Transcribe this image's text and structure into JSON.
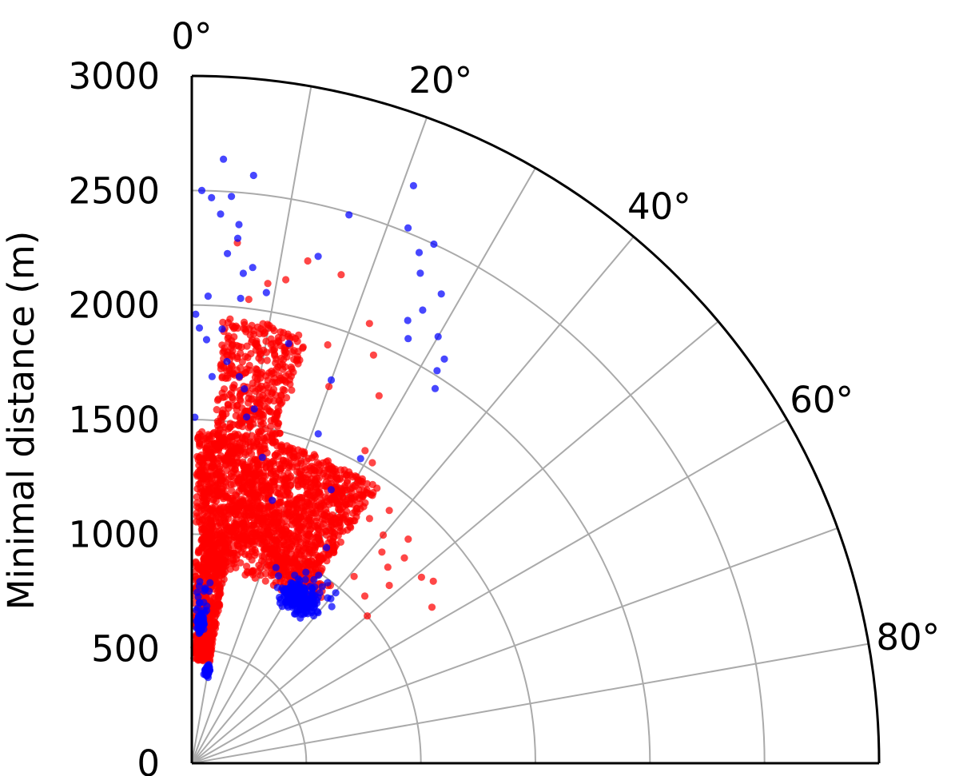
{
  "chart_data": {
    "type": "scatter",
    "projection": "polar-quadrant",
    "title": "",
    "ylabel": "Minimal distance (m)",
    "angle_ticks": [
      "0°",
      "20°",
      "40°",
      "60°",
      "80°"
    ],
    "angle_tick_values": [
      0,
      20,
      40,
      60,
      80
    ],
    "radial_ticks": [
      "0",
      "500",
      "1000",
      "1500",
      "2000",
      "2500",
      "3000"
    ],
    "radial_tick_values": [
      0,
      500,
      1000,
      1500,
      2000,
      2500,
      3000
    ],
    "rlim": [
      0,
      3000
    ],
    "theta_range_deg": [
      0,
      90
    ],
    "grid": true,
    "colors": {
      "red": "#ff0000",
      "blue": "#0000ff",
      "grid": "#aaaaaa"
    },
    "series": [
      {
        "color": "#ff0000",
        "clusters": [
          {
            "theta": [
              1,
              10
            ],
            "r": [
              450,
              1000
            ],
            "count": 520,
            "dist": "uniform"
          },
          {
            "theta": [
              1,
              20
            ],
            "r": [
              1000,
              1450
            ],
            "count": 900,
            "dist": "uniform"
          },
          {
            "theta": [
              4,
              15
            ],
            "r": [
              1450,
              1950
            ],
            "count": 380,
            "dist": "uniform"
          },
          {
            "theta": [
              20,
              34
            ],
            "r": [
              900,
              1450
            ],
            "count": 650,
            "dist": "uniform"
          },
          {
            "theta": [
              4,
              38
            ],
            "r": [
              850,
              1000
            ],
            "count": 200,
            "dist": "uniform"
          }
        ],
        "points": [
          [
            17,
            2230
          ],
          [
            13,
            2250
          ],
          [
            5,
            2280
          ],
          [
            9,
            2120
          ],
          [
            22,
            2070
          ],
          [
            24,
            1950
          ],
          [
            29,
            1560
          ],
          [
            34,
            1410
          ],
          [
            38,
            1400
          ],
          [
            40,
            1300
          ],
          [
            42,
            1240
          ],
          [
            45,
            1210
          ],
          [
            46,
            1290
          ],
          [
            44,
            1360
          ],
          [
            48,
            1160
          ],
          [
            51,
            1290
          ],
          [
            53,
            1320
          ],
          [
            57,
            1250
          ],
          [
            46,
            1050
          ],
          [
            50,
            1000
          ],
          [
            41,
            1080
          ],
          [
            36,
            1320
          ],
          [
            31,
            1530
          ],
          [
            27,
            1800
          ],
          [
            20,
            1750
          ],
          [
            18,
            1920
          ],
          [
            11,
            2150
          ],
          [
            7,
            2040
          ]
        ]
      },
      {
        "color": "#0000ff",
        "clusters": [
          {
            "theta": [
              1.5,
              6
            ],
            "r": [
              560,
              660
            ],
            "count": 100,
            "dist": "gauss",
            "center": [
              3.5,
              610
            ],
            "sd": [
              0.7,
              18
            ]
          },
          {
            "theta": [
              1,
              6
            ],
            "r": [
              660,
              800
            ],
            "count": 18,
            "dist": "uniform"
          },
          {
            "theta": [
              7.5,
              11
            ],
            "r": [
              380,
              440
            ],
            "count": 80,
            "dist": "gauss",
            "center": [
              9.5,
              410
            ],
            "sd": [
              0.6,
              10
            ]
          },
          {
            "theta": [
              26,
              40
            ],
            "r": [
              790,
              960
            ],
            "count": 220,
            "dist": "gauss",
            "center": [
              33,
              860
            ],
            "sd": [
              2.6,
              28
            ]
          },
          {
            "theta": [
              20,
              43
            ],
            "r": [
              900,
              1000
            ],
            "count": 16,
            "dist": "uniform"
          }
        ],
        "points": [
          [
            3,
            2640
          ],
          [
            6,
            2580
          ],
          [
            1,
            2500
          ],
          [
            2,
            2470
          ],
          [
            4,
            2480
          ],
          [
            3,
            2400
          ],
          [
            5,
            2360
          ],
          [
            7,
            2180
          ],
          [
            6,
            2150
          ],
          [
            4,
            2230
          ],
          [
            5,
            2300
          ],
          [
            2,
            2040
          ],
          [
            6,
            2040
          ],
          [
            9,
            2080
          ],
          [
            0.5,
            1960
          ],
          [
            1,
            1900
          ],
          [
            2,
            1850
          ],
          [
            4,
            1900
          ],
          [
            5,
            1760
          ],
          [
            3,
            1690
          ],
          [
            7,
            1700
          ],
          [
            8,
            1650
          ],
          [
            10,
            1570
          ],
          [
            9,
            1530
          ],
          [
            14,
            2280
          ],
          [
            21,
            2700
          ],
          [
            16,
            2490
          ],
          [
            22,
            2520
          ],
          [
            24,
            2440
          ],
          [
            25,
            2500
          ],
          [
            25,
            2360
          ],
          [
            28,
            2320
          ],
          [
            27,
            2220
          ],
          [
            26,
            2150
          ],
          [
            27,
            2080
          ],
          [
            30,
            2150
          ],
          [
            32,
            2020
          ],
          [
            32,
            2080
          ],
          [
            33,
            1950
          ],
          [
            13,
            1880
          ],
          [
            20,
            1780
          ],
          [
            21,
            1540
          ],
          [
            27,
            1340
          ],
          [
            32,
            1110
          ],
          [
            13,
            1370
          ],
          [
            17,
            1200
          ],
          [
            29,
            1520
          ],
          [
            0.5,
            1510
          ]
        ]
      }
    ]
  }
}
